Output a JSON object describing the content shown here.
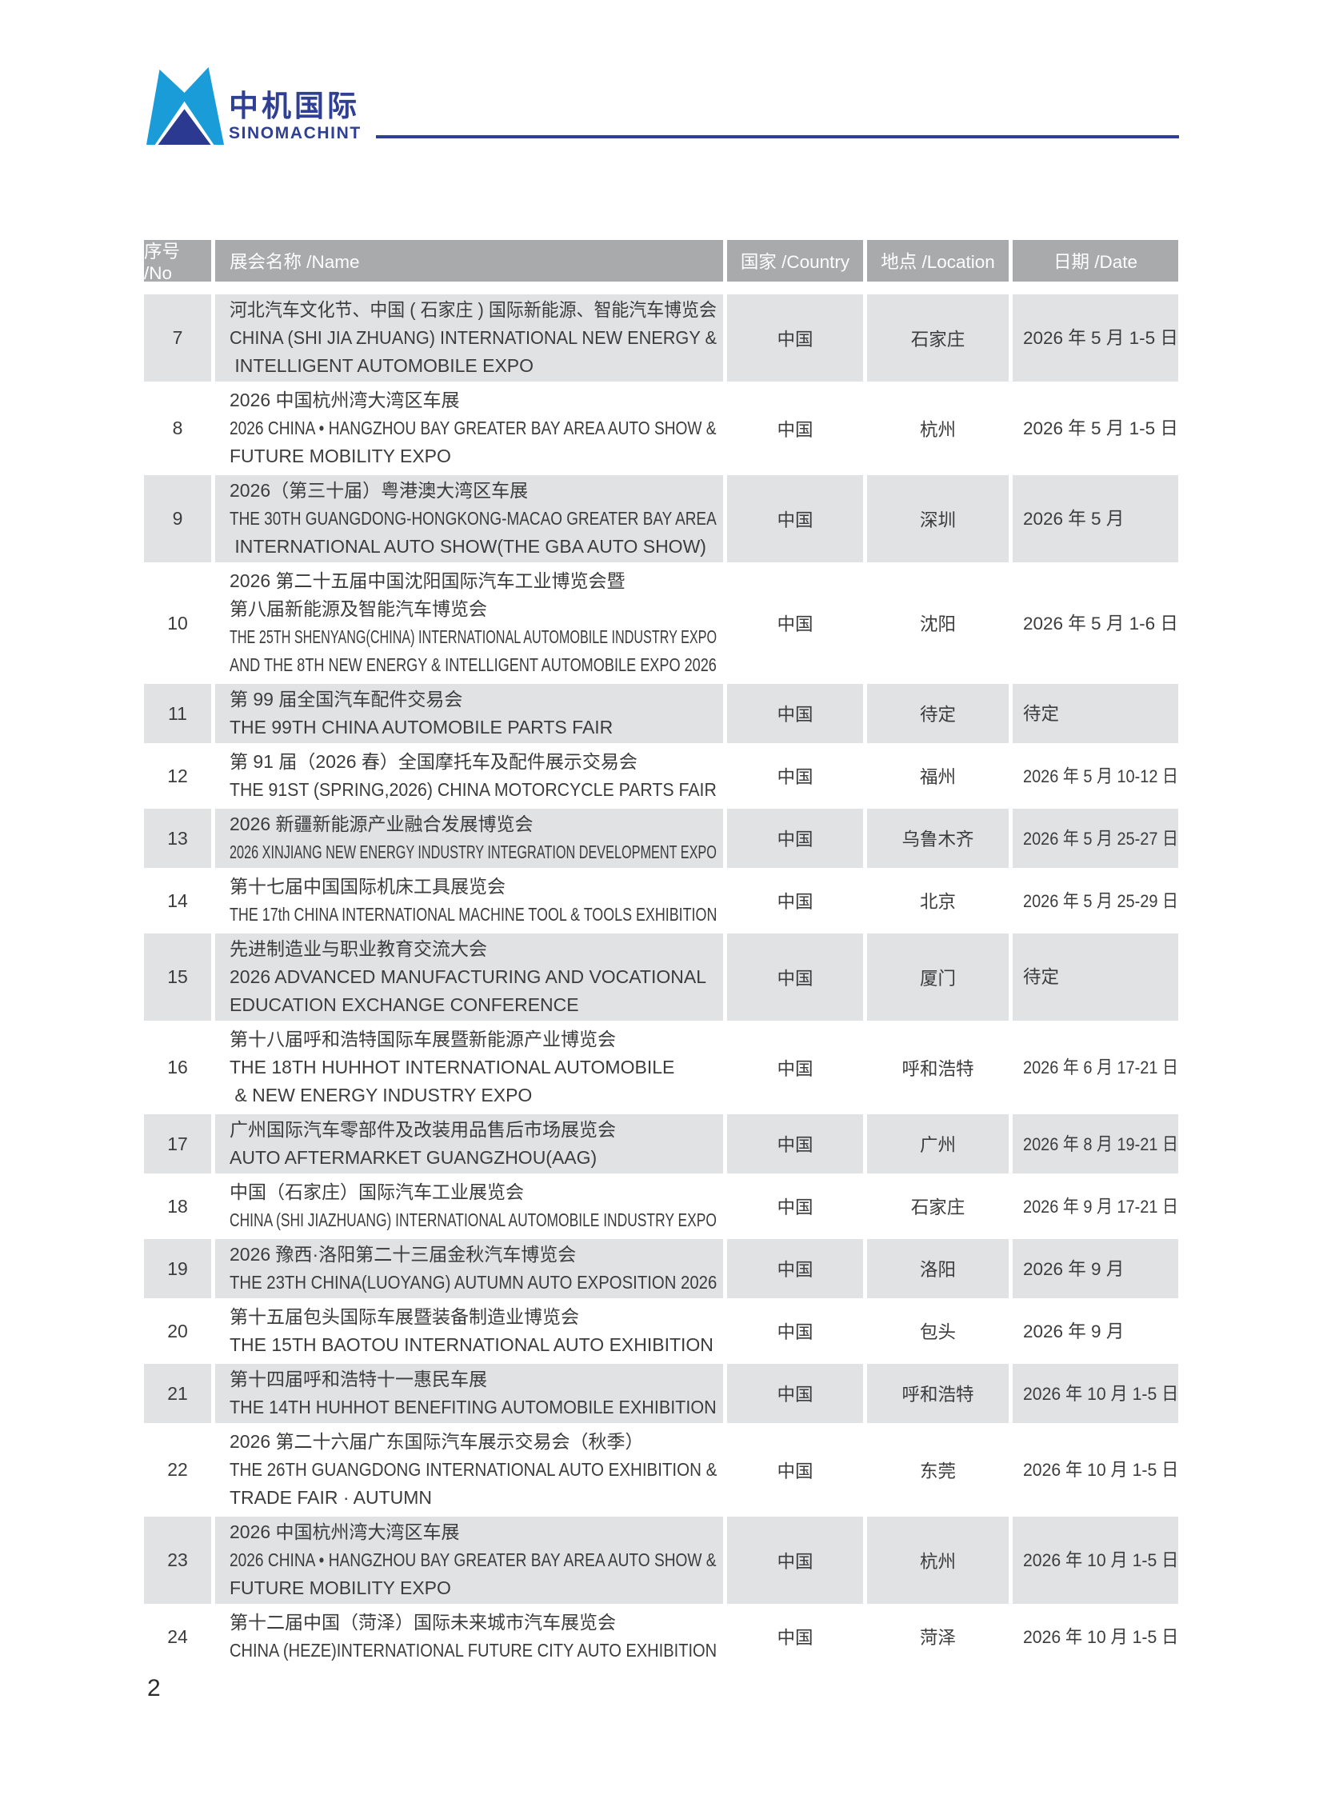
{
  "logo": {
    "name_cn": "中机国际",
    "name_en": "SINOMACHINT"
  },
  "colors": {
    "logo_light_blue": "#1a9cd9",
    "logo_navy": "#2b3990",
    "logo_text_blue": "#2e3f94",
    "rule_blue": "#2e3f94",
    "header_bg": "#a8aaac",
    "row_shaded_bg": "#e1e2e3",
    "body_text": "#3c3c3c"
  },
  "table": {
    "headers": [
      "序号 /No",
      "展会名称 /Name",
      "国家 /Country",
      "地点 /Location",
      "日期 /Date"
    ],
    "rows": [
      {
        "no": "7",
        "name_lines": [
          "河北汽车文化节、中国 ( 石家庄 ) 国际新能源、智能汽车博览会",
          "CHINA (SHI JIA ZHUANG) INTERNATIONAL NEW ENERGY &",
          " INTELLIGENT AUTOMOBILE EXPO"
        ],
        "country": "中国",
        "location": "石家庄",
        "date": "2026 年 5 月 1-5 日",
        "shaded": true
      },
      {
        "no": "8",
        "name_lines": [
          "2026 中国杭州湾大湾区车展",
          "2026 CHINA • HANGZHOU BAY GREATER BAY AREA AUTO SHOW &",
          "FUTURE MOBILITY EXPO"
        ],
        "country": "中国",
        "location": "杭州",
        "date": "2026 年 5 月 1-5 日",
        "shaded": false
      },
      {
        "no": "9",
        "name_lines": [
          "2026（第三十届）粤港澳大湾区车展",
          "THE 30TH GUANGDONG-HONGKONG-MACAO GREATER BAY AREA",
          " INTERNATIONAL AUTO SHOW(THE GBA AUTO SHOW)"
        ],
        "country": "中国",
        "location": "深圳",
        "date": "2026 年 5 月",
        "shaded": true
      },
      {
        "no": "10",
        "name_lines": [
          "2026 第二十五届中国沈阳国际汽车工业博览会暨",
          "第八届新能源及智能汽车博览会",
          "THE 25TH SHENYANG(CHINA) INTERNATIONAL AUTOMOBILE INDUSTRY EXPO",
          "AND THE 8TH NEW ENERGY & INTELLIGENT AUTOMOBILE EXPO 2026"
        ],
        "country": "中国",
        "location": "沈阳",
        "date": "2026 年 5 月 1-6 日",
        "shaded": false
      },
      {
        "no": "11",
        "name_lines": [
          "第 99 届全国汽车配件交易会",
          "THE 99TH CHINA AUTOMOBILE PARTS FAIR"
        ],
        "country": "中国",
        "location": "待定",
        "date": "待定",
        "shaded": true
      },
      {
        "no": "12",
        "name_lines": [
          "第 91 届（2026 春）全国摩托车及配件展示交易会",
          "THE 91ST (SPRING,2026) CHINA MOTORCYCLE PARTS FAIR"
        ],
        "country": "中国",
        "location": "福州",
        "date": "2026 年 5 月 10-12 日",
        "shaded": false
      },
      {
        "no": "13",
        "name_lines": [
          "2026 新疆新能源产业融合发展博览会",
          "2026 XINJIANG NEW ENERGY INDUSTRY INTEGRATION DEVELOPMENT EXPO"
        ],
        "country": "中国",
        "location": "乌鲁木齐",
        "date": "2026 年 5 月 25-27 日",
        "shaded": true
      },
      {
        "no": "14",
        "name_lines": [
          "第十七届中国国际机床工具展览会",
          "THE 17th CHINA INTERNATIONAL MACHINE TOOL & TOOLS EXHIBITION"
        ],
        "country": "中国",
        "location": "北京",
        "date": "2026 年 5 月 25-29 日",
        "shaded": false
      },
      {
        "no": "15",
        "name_lines": [
          "先进制造业与职业教育交流大会",
          "2026 ADVANCED MANUFACTURING AND VOCATIONAL",
          "EDUCATION EXCHANGE CONFERENCE"
        ],
        "country": "中国",
        "location": "厦门",
        "date": "待定",
        "shaded": true
      },
      {
        "no": "16",
        "name_lines": [
          "第十八届呼和浩特国际车展暨新能源产业博览会",
          "THE 18TH HUHHOT INTERNATIONAL AUTOMOBILE",
          " & NEW ENERGY INDUSTRY EXPO"
        ],
        "country": "中国",
        "location": "呼和浩特",
        "date": "2026 年 6 月 17-21 日",
        "shaded": false
      },
      {
        "no": "17",
        "name_lines": [
          "广州国际汽车零部件及改装用品售后市场展览会",
          "AUTO AFTERMARKET GUANGZHOU(AAG)"
        ],
        "country": "中国",
        "location": "广州",
        "date": "2026 年 8 月 19-21 日",
        "shaded": true
      },
      {
        "no": "18",
        "name_lines": [
          "中国（石家庄）国际汽车工业展览会",
          "CHINA (SHI JIAZHUANG) INTERNATIONAL AUTOMOBILE INDUSTRY EXPO"
        ],
        "country": "中国",
        "location": "石家庄",
        "date": "2026 年 9 月 17-21 日",
        "shaded": false
      },
      {
        "no": "19",
        "name_lines": [
          "2026 豫西·洛阳第二十三届金秋汽车博览会",
          "THE 23TH CHINA(LUOYANG) AUTUMN AUTO EXPOSITION 2026"
        ],
        "country": "中国",
        "location": "洛阳",
        "date": "2026 年 9 月",
        "shaded": true
      },
      {
        "no": "20",
        "name_lines": [
          "第十五届包头国际车展暨装备制造业博览会",
          "THE 15TH BAOTOU INTERNATIONAL AUTO EXHIBITION"
        ],
        "country": "中国",
        "location": "包头",
        "date": "2026 年 9 月",
        "shaded": false
      },
      {
        "no": "21",
        "name_lines": [
          "第十四届呼和浩特十一惠民车展",
          "THE 14TH HUHHOT BENEFITING AUTOMOBILE EXHIBITION"
        ],
        "country": "中国",
        "location": "呼和浩特",
        "date": "2026 年 10 月 1-5 日",
        "shaded": true
      },
      {
        "no": "22",
        "name_lines": [
          "2026 第二十六届广东国际汽车展示交易会（秋季）",
          "THE 26TH GUANGDONG INTERNATIONAL AUTO EXHIBITION &",
          "TRADE FAIR · AUTUMN"
        ],
        "country": "中国",
        "location": "东莞",
        "date": "2026 年 10 月 1-5 日",
        "shaded": false
      },
      {
        "no": "23",
        "name_lines": [
          "2026 中国杭州湾大湾区车展",
          "2026 CHINA • HANGZHOU BAY GREATER BAY AREA AUTO SHOW &",
          "FUTURE MOBILITY EXPO"
        ],
        "country": "中国",
        "location": "杭州",
        "date": "2026 年 10 月 1-5 日",
        "shaded": true
      },
      {
        "no": "24",
        "name_lines": [
          "第十二届中国（菏泽）国际未来城市汽车展览会",
          "CHINA (HEZE)INTERNATIONAL FUTURE CITY AUTO EXHIBITION"
        ],
        "country": "中国",
        "location": "菏泽",
        "date": "2026 年 10 月 1-5 日",
        "shaded": false
      }
    ]
  },
  "footer": {
    "page_number": "2"
  }
}
